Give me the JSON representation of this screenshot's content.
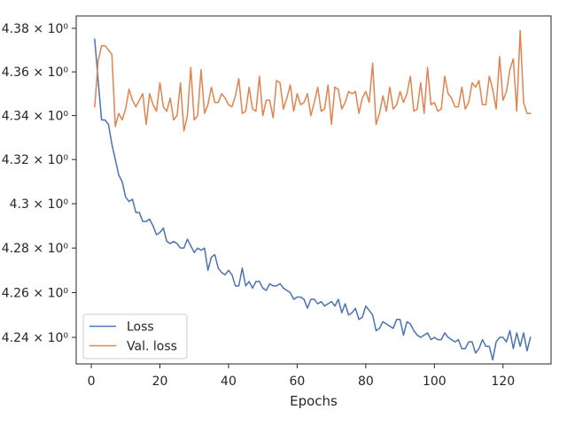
{
  "chart_data": {
    "type": "line",
    "title": "",
    "xlabel": "Epochs",
    "ylabel": "",
    "yscale": "log",
    "xlim": [
      -4.4,
      134
    ],
    "ylim": [
      4.2282,
      4.3857
    ],
    "grid": false,
    "legend": {
      "location": "lower-left",
      "entries": [
        "Loss",
        "Val. loss"
      ]
    },
    "x_ticks": [
      0,
      20,
      40,
      60,
      80,
      100,
      120
    ],
    "x_tick_labels": [
      "0",
      "20",
      "40",
      "60",
      "80",
      "100",
      "120"
    ],
    "y_ticks": [
      4.24,
      4.26,
      4.28,
      4.3,
      4.32,
      4.34,
      4.36,
      4.38
    ],
    "y_tick_labels": [
      "4.24 × 10⁰",
      "4.26 × 10⁰",
      "4.28 × 10⁰",
      "4.3 × 10⁰",
      "4.32 × 10⁰",
      "4.34 × 10⁰",
      "4.36 × 10⁰",
      "4.38 × 10⁰"
    ],
    "x": [
      1,
      2,
      3,
      4,
      5,
      6,
      7,
      8,
      9,
      10,
      11,
      12,
      13,
      14,
      15,
      16,
      17,
      18,
      19,
      20,
      21,
      22,
      23,
      24,
      25,
      26,
      27,
      28,
      29,
      30,
      31,
      32,
      33,
      34,
      35,
      36,
      37,
      38,
      39,
      40,
      41,
      42,
      43,
      44,
      45,
      46,
      47,
      48,
      49,
      50,
      51,
      52,
      53,
      54,
      55,
      56,
      57,
      58,
      59,
      60,
      61,
      62,
      63,
      64,
      65,
      66,
      67,
      68,
      69,
      70,
      71,
      72,
      73,
      74,
      75,
      76,
      77,
      78,
      79,
      80,
      81,
      82,
      83,
      84,
      85,
      86,
      87,
      88,
      89,
      90,
      91,
      92,
      93,
      94,
      95,
      96,
      97,
      98,
      99,
      100,
      101,
      102,
      103,
      104,
      105,
      106,
      107,
      108,
      109,
      110,
      111,
      112,
      113,
      114,
      115,
      116,
      117,
      118,
      119,
      120,
      121,
      122,
      123,
      124,
      125,
      126,
      127,
      128
    ],
    "series": [
      {
        "name": "Loss",
        "color": "#4c72b0",
        "values": [
          4.375,
          4.356,
          4.338,
          4.338,
          4.336,
          4.327,
          4.32,
          4.313,
          4.31,
          4.303,
          4.301,
          4.302,
          4.296,
          4.296,
          4.292,
          4.292,
          4.293,
          4.29,
          4.286,
          4.287,
          4.289,
          4.283,
          4.282,
          4.283,
          4.282,
          4.28,
          4.28,
          4.284,
          4.281,
          4.278,
          4.28,
          4.279,
          4.28,
          4.27,
          4.276,
          4.277,
          4.271,
          4.269,
          4.268,
          4.27,
          4.268,
          4.263,
          4.263,
          4.271,
          4.263,
          4.265,
          4.262,
          4.265,
          4.265,
          4.262,
          4.261,
          4.264,
          4.263,
          4.263,
          4.264,
          4.262,
          4.261,
          4.26,
          4.257,
          4.258,
          4.258,
          4.257,
          4.253,
          4.257,
          4.257,
          4.255,
          4.256,
          4.254,
          4.255,
          4.256,
          4.254,
          4.257,
          4.251,
          4.255,
          4.25,
          4.251,
          4.253,
          4.248,
          4.249,
          4.254,
          4.252,
          4.25,
          4.243,
          4.244,
          4.247,
          4.246,
          4.245,
          4.244,
          4.248,
          4.248,
          4.241,
          4.247,
          4.246,
          4.243,
          4.241,
          4.24,
          4.241,
          4.242,
          4.239,
          4.24,
          4.239,
          4.239,
          4.242,
          4.24,
          4.239,
          4.238,
          4.239,
          4.235,
          4.235,
          4.238,
          4.238,
          4.233,
          4.235,
          4.239,
          4.236,
          4.236,
          4.23,
          4.238,
          4.24,
          4.24,
          4.238,
          4.243,
          4.235,
          4.242,
          4.236,
          4.242,
          4.234,
          4.24
        ]
      },
      {
        "name": "Val. loss",
        "color": "#dd8452",
        "values": [
          4.344,
          4.365,
          4.372,
          4.372,
          4.37,
          4.368,
          4.335,
          4.341,
          4.338,
          4.343,
          4.352,
          4.347,
          4.344,
          4.347,
          4.35,
          4.336,
          4.35,
          4.345,
          4.342,
          4.355,
          4.344,
          4.342,
          4.348,
          4.338,
          4.34,
          4.355,
          4.333,
          4.34,
          4.362,
          4.338,
          4.34,
          4.361,
          4.341,
          4.345,
          4.353,
          4.346,
          4.346,
          4.35,
          4.348,
          4.345,
          4.344,
          4.349,
          4.357,
          4.341,
          4.342,
          4.353,
          4.343,
          4.342,
          4.358,
          4.34,
          4.347,
          4.347,
          4.339,
          4.356,
          4.355,
          4.343,
          4.348,
          4.354,
          4.342,
          4.35,
          4.345,
          4.346,
          4.35,
          4.34,
          4.346,
          4.353,
          4.342,
          4.343,
          4.354,
          4.336,
          4.353,
          4.352,
          4.343,
          4.346,
          4.351,
          4.35,
          4.351,
          4.341,
          4.348,
          4.351,
          4.346,
          4.364,
          4.336,
          4.341,
          4.349,
          4.342,
          4.353,
          4.343,
          4.345,
          4.351,
          4.346,
          4.35,
          4.358,
          4.342,
          4.343,
          4.355,
          4.341,
          4.362,
          4.345,
          4.346,
          4.342,
          4.343,
          4.358,
          4.35,
          4.348,
          4.344,
          4.344,
          4.353,
          4.343,
          4.346,
          4.355,
          4.353,
          4.356,
          4.345,
          4.345,
          4.358,
          4.352,
          4.343,
          4.367,
          4.347,
          4.351,
          4.361,
          4.366,
          4.342,
          4.379,
          4.346,
          4.341,
          4.341
        ]
      }
    ]
  }
}
